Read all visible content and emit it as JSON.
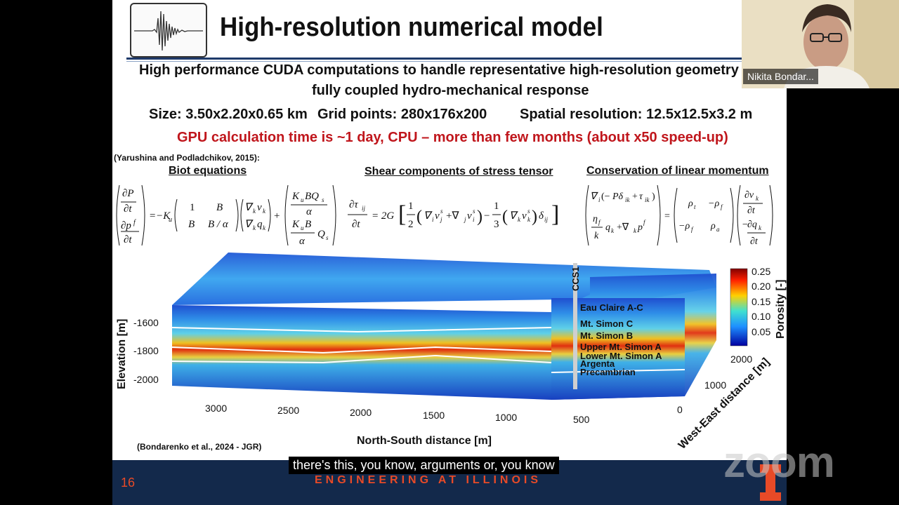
{
  "slide": {
    "title": "High-resolution numerical model",
    "line1": "High performance CUDA computations to handle representative high-resolution geometry a",
    "line2": "fully coupled hydro-mechanical response",
    "size": "Size: 3.50x2.20x0.65 km",
    "grid": "Grid points: 280x176x200",
    "resolution": "Spatial resolution: 12.5x12.5x3.2 m",
    "gpu": "GPU calculation time is ~1 day, CPU – more than few months (about x50 speed-up)",
    "cite1": "(Yarushina and Podladchikov, 2015):",
    "header_biot": "Biot equations",
    "header_shear": "Shear components of stress tensor",
    "header_momentum": "Conservation of linear momentum",
    "cite2": "(Bondarenko et al., 2024 - JGR)",
    "page_number": "16",
    "footer": "ENGINEERING AT ILLINOIS"
  },
  "figure": {
    "ylabel": "Elevation [m]",
    "xlabel": "North-South distance [m]",
    "zlabel": "West-East distance [m]",
    "y_ticks": [
      "-1600",
      "-1800",
      "-2000"
    ],
    "x_ticks": [
      "3000",
      "2500",
      "2000",
      "1500",
      "1000",
      "500"
    ],
    "z_ticks": [
      "0",
      "1000",
      "2000"
    ],
    "well_label": "CCS1",
    "layers": [
      "Eau Claire A-C",
      "Mt. Simon C",
      "Mt. Simon B",
      "Upper Mt. Simon A",
      "Lower Mt. Simon A",
      "Argenta",
      "Precambrian"
    ],
    "colorbar_label": "Porosity [-]",
    "colorbar_ticks": [
      "0.25",
      "0.20",
      "0.15",
      "0.10",
      "0.05"
    ]
  },
  "video": {
    "participant_name": "Nikita Bondar...",
    "caption": "there's this, you know, arguments or, you know",
    "watermark": "zoom"
  },
  "colors": {
    "accent_red": "#c0161c",
    "footer_bg": "#13294b",
    "illinois_orange": "#e84a27"
  }
}
